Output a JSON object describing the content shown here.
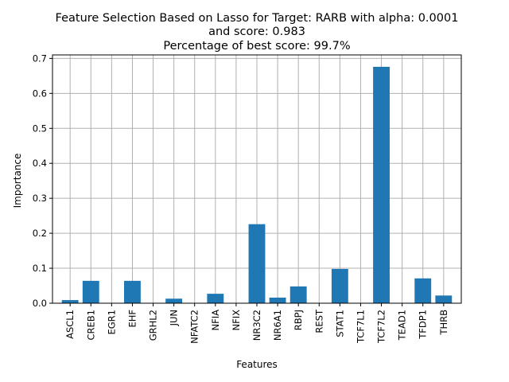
{
  "chart_data": {
    "type": "bar",
    "title_lines": [
      "Feature Selection Based on Lasso for Target: RARB with alpha: 0.0001",
      "and score: 0.983",
      "Percentage of best score: 99.7%"
    ],
    "xlabel": "Features",
    "ylabel": "Importance",
    "categories": [
      "ASCL1",
      "CREB1",
      "EGR1",
      "EHF",
      "GRHL2",
      "JUN",
      "NFATC2",
      "NFIA",
      "NFIX",
      "NR3C2",
      "NR6A1",
      "RBPJ",
      "REST",
      "STAT1",
      "TCF7L1",
      "TCF7L2",
      "TEAD1",
      "TFDP1",
      "THRB"
    ],
    "values": [
      0.009,
      0.064,
      0.0,
      0.064,
      0.0,
      0.013,
      0.0,
      0.027,
      0.0,
      0.226,
      0.016,
      0.048,
      0.0,
      0.098,
      0.0,
      0.676,
      0.0,
      0.071,
      0.022
    ],
    "ylim": [
      0,
      0.71
    ],
    "yticks": [
      0.0,
      0.1,
      0.2,
      0.3,
      0.4,
      0.5,
      0.6,
      0.7
    ],
    "ytick_labels": [
      "0.0",
      "0.1",
      "0.2",
      "0.3",
      "0.4",
      "0.5",
      "0.6",
      "0.7"
    ],
    "grid": true,
    "bar_color": "#1f77b4",
    "grid_color": "#b0b0b0"
  }
}
